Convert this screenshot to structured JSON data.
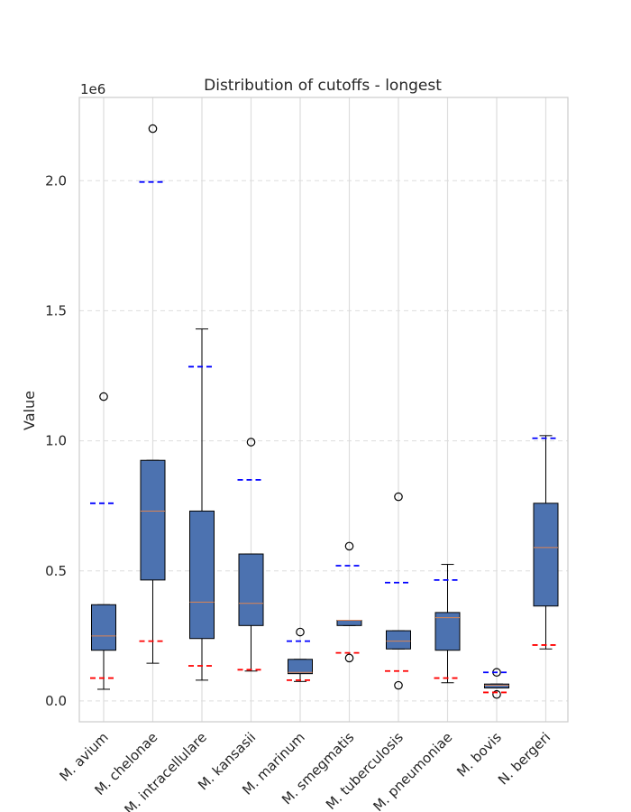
{
  "chart_data": {
    "type": "box",
    "title": "Distribution of cutoffs - longest",
    "ylabel": "Value",
    "xlabel": "",
    "y_scale_label": "1e6",
    "ylim": [
      -80000,
      2320000
    ],
    "yticks": [
      0,
      500000,
      1000000,
      1500000,
      2000000
    ],
    "ytick_labels": [
      "0.0",
      "0.5",
      "1.0",
      "1.5",
      "2.0"
    ],
    "grid": true,
    "colors": {
      "box_fill": "#4c72b0",
      "median": "#dd8452",
      "upper_dash": "#0000ff",
      "lower_dash": "#ff0000",
      "grid": "#dddddd",
      "axis": "#cccccc"
    },
    "categories": [
      "M. avium",
      "M. chelonae",
      "M. intracellulare",
      "M. kansasii",
      "M. marinum",
      "M. smegmatis",
      "M. tuberculosis",
      "M. pneumoniae",
      "M. bovis",
      "N. bergeri"
    ],
    "boxes": [
      {
        "whisker_low": 45000,
        "q1": 195000,
        "median": 250000,
        "q3": 370000,
        "whisker_high": 370000,
        "outliers": [
          1170000
        ],
        "upper_dash": 760000,
        "lower_dash": 88000
      },
      {
        "whisker_low": 145000,
        "q1": 465000,
        "median": 730000,
        "q3": 925000,
        "whisker_high": 925000,
        "outliers": [
          2200000
        ],
        "upper_dash": 1995000,
        "lower_dash": 230000
      },
      {
        "whisker_low": 80000,
        "q1": 240000,
        "median": 380000,
        "q3": 730000,
        "whisker_high": 1430000,
        "outliers": [],
        "upper_dash": 1285000,
        "lower_dash": 135000
      },
      {
        "whisker_low": 115000,
        "q1": 290000,
        "median": 375000,
        "q3": 565000,
        "whisker_high": 565000,
        "outliers": [
          995000
        ],
        "upper_dash": 850000,
        "lower_dash": 120000
      },
      {
        "whisker_low": 75000,
        "q1": 105000,
        "median": 110000,
        "q3": 160000,
        "whisker_high": 160000,
        "outliers": [
          265000
        ],
        "upper_dash": 230000,
        "lower_dash": 80000
      },
      {
        "whisker_low": 290000,
        "q1": 290000,
        "median": 310000,
        "q3": 310000,
        "whisker_high": 310000,
        "outliers": [
          595000,
          165000
        ],
        "upper_dash": 520000,
        "lower_dash": 185000
      },
      {
        "whisker_low": 200000,
        "q1": 200000,
        "median": 230000,
        "q3": 270000,
        "whisker_high": 270000,
        "outliers": [
          785000,
          60000
        ],
        "upper_dash": 455000,
        "lower_dash": 115000
      },
      {
        "whisker_low": 70000,
        "q1": 195000,
        "median": 320000,
        "q3": 340000,
        "whisker_high": 525000,
        "outliers": [],
        "upper_dash": 465000,
        "lower_dash": 88000
      },
      {
        "whisker_low": 50000,
        "q1": 50000,
        "median": 60000,
        "q3": 65000,
        "whisker_high": 65000,
        "outliers": [
          110000,
          25000
        ],
        "upper_dash": 110000,
        "lower_dash": 33000
      },
      {
        "whisker_low": 200000,
        "q1": 365000,
        "median": 590000,
        "q3": 760000,
        "whisker_high": 1020000,
        "outliers": [],
        "upper_dash": 1010000,
        "lower_dash": 215000
      }
    ]
  }
}
